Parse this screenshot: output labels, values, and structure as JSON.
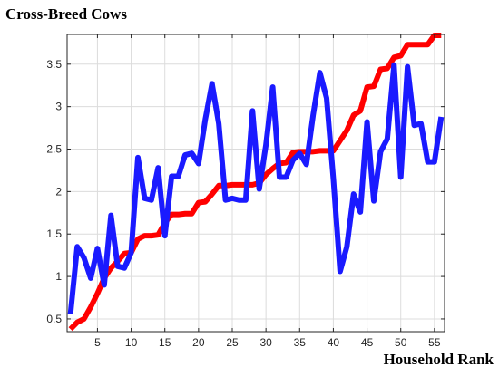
{
  "chart_data": {
    "type": "line",
    "title": "Cross-Breed Cows",
    "xlabel": "Household Rank",
    "ylabel": "",
    "xlim": [
      0.5,
      56.5
    ],
    "ylim": [
      0.35,
      3.85
    ],
    "grid": true,
    "x_ticks": [
      5,
      10,
      15,
      20,
      25,
      30,
      35,
      40,
      45,
      50,
      55
    ],
    "y_ticks": [
      0.5,
      1,
      1.5,
      2,
      2.5,
      3,
      3.5
    ],
    "series": [
      {
        "color": "#ff0000",
        "values": [
          0.38,
          0.46,
          0.5,
          0.64,
          0.8,
          0.98,
          1.1,
          1.18,
          1.27,
          1.28,
          1.44,
          1.48,
          1.48,
          1.49,
          1.63,
          1.73,
          1.73,
          1.74,
          1.74,
          1.87,
          1.88,
          1.97,
          2.07,
          2.07,
          2.08,
          2.08,
          2.08,
          2.08,
          2.1,
          2.2,
          2.27,
          2.33,
          2.34,
          2.46,
          2.47,
          2.47,
          2.47,
          2.48,
          2.48,
          2.48,
          2.6,
          2.72,
          2.9,
          2.95,
          3.23,
          3.24,
          3.44,
          3.45,
          3.58,
          3.6,
          3.73,
          3.73,
          3.73,
          3.73,
          3.84,
          3.84
        ]
      },
      {
        "color": "#1a1aff",
        "values": [
          0.56,
          1.35,
          1.22,
          0.98,
          1.33,
          0.9,
          1.72,
          1.12,
          1.1,
          1.28,
          2.4,
          1.92,
          1.9,
          2.28,
          1.48,
          2.18,
          2.18,
          2.43,
          2.45,
          2.33,
          2.85,
          3.27,
          2.8,
          1.9,
          1.92,
          1.9,
          1.9,
          2.95,
          2.03,
          2.55,
          3.23,
          2.17,
          2.17,
          2.37,
          2.45,
          2.32,
          2.9,
          3.4,
          3.1,
          2.15,
          1.06,
          1.35,
          1.97,
          1.76,
          2.82,
          1.89,
          2.47,
          2.62,
          3.49,
          2.17,
          3.47,
          2.78,
          2.8,
          2.35,
          2.35,
          2.88
        ]
      }
    ]
  }
}
